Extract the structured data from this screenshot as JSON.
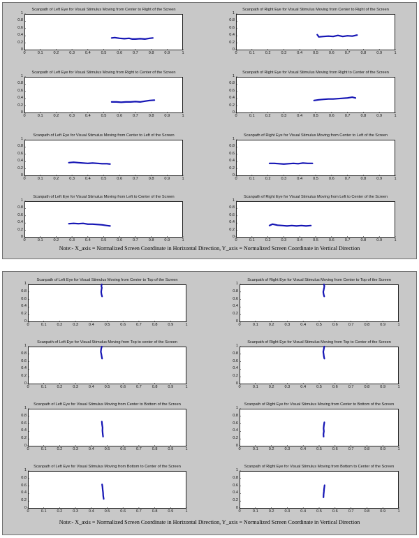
{
  "colors": {
    "trace": "#1414b4",
    "panel_bg": "#c8c8c8"
  },
  "notes": {
    "top": "Note:- X_axis = Normalized Screen Coordinate in Horizontal Direction,  Y_axis = Normalized Screen Coordinate in Vertical Direction",
    "bottom": "Note:- X_axis = Normalized Screen Coordinate in Horizontal Direction, Y_axis = Normalized Screen Coordinate in Vertical Direction"
  },
  "chart_data": [
    {
      "type": "line",
      "title": "Scanpath of Left Eye for Visual Stimulus Moving from Center to Right of the Screen",
      "xlim": [
        0,
        1
      ],
      "ylim": [
        0,
        1
      ],
      "xticks": [
        "0",
        "0.1",
        "0.2",
        "0.3",
        "0.4",
        "0.5",
        "0.6",
        "0.7",
        "0.8",
        "0.9",
        "1"
      ],
      "yticks": [
        "0",
        "0.2",
        "0.4",
        "0.6",
        "0.8",
        "1"
      ],
      "series": [
        {
          "x": [
            0.55,
            0.57,
            0.6,
            0.63,
            0.66,
            0.68,
            0.7,
            0.73,
            0.76,
            0.79,
            0.81
          ],
          "y": [
            0.34,
            0.35,
            0.33,
            0.32,
            0.33,
            0.31,
            0.31,
            0.32,
            0.31,
            0.33,
            0.34
          ]
        }
      ]
    },
    {
      "type": "line",
      "title": "Scanpath of Right Eye for Visual Stimulus Moving from Center to Right of the Screen",
      "xlim": [
        0,
        1
      ],
      "ylim": [
        0,
        1
      ],
      "xticks": [
        "0",
        "0.1",
        "0.2",
        "0.3",
        "0.4",
        "0.5",
        "0.6",
        "0.7",
        "0.8",
        "0.9",
        "1"
      ],
      "yticks": [
        "0",
        "0.2",
        "0.4",
        "0.6",
        "0.8",
        "1"
      ],
      "series": [
        {
          "x": [
            0.51,
            0.52,
            0.55,
            0.58,
            0.61,
            0.64,
            0.67,
            0.7,
            0.73,
            0.76
          ],
          "y": [
            0.43,
            0.37,
            0.38,
            0.39,
            0.38,
            0.41,
            0.38,
            0.4,
            0.39,
            0.42
          ]
        }
      ]
    },
    {
      "type": "line",
      "title": "Scanpath of Left Eye for Visual Stimulus Moving from Right to Center of the Screen",
      "xlim": [
        0,
        1
      ],
      "ylim": [
        0,
        1
      ],
      "xticks": [
        "0",
        "0.1",
        "0.2",
        "0.3",
        "0.4",
        "0.5",
        "0.6",
        "0.7",
        "0.8",
        "0.9",
        "1"
      ],
      "yticks": [
        "0",
        "0.2",
        "0.4",
        "0.6",
        "0.8",
        "1"
      ],
      "series": [
        {
          "x": [
            0.55,
            0.58,
            0.61,
            0.64,
            0.67,
            0.7,
            0.73,
            0.76,
            0.79,
            0.82
          ],
          "y": [
            0.31,
            0.31,
            0.3,
            0.31,
            0.31,
            0.32,
            0.31,
            0.33,
            0.35,
            0.36
          ]
        }
      ]
    },
    {
      "type": "line",
      "title": "Scanpath of Right Eye for Visual Stimulus Moving from Right to Center of the Screen",
      "xlim": [
        0,
        1
      ],
      "ylim": [
        0,
        1
      ],
      "xticks": [
        "0",
        "0.1",
        "0.2",
        "0.3",
        "0.4",
        "0.5",
        "0.6",
        "0.7",
        "0.8",
        "0.9",
        "1"
      ],
      "yticks": [
        "0",
        "0.2",
        "0.4",
        "0.6",
        "0.8",
        "1"
      ],
      "series": [
        {
          "x": [
            0.49,
            0.52,
            0.55,
            0.58,
            0.61,
            0.64,
            0.67,
            0.7,
            0.73,
            0.75
          ],
          "y": [
            0.35,
            0.37,
            0.38,
            0.39,
            0.39,
            0.4,
            0.41,
            0.42,
            0.44,
            0.42
          ]
        }
      ]
    },
    {
      "type": "line",
      "title": "Scanpath of Left Eye for Visual Stimulus Moving from Center to Left of the Screen",
      "xlim": [
        0,
        1
      ],
      "ylim": [
        0,
        1
      ],
      "xticks": [
        "0",
        "0.1",
        "0.2",
        "0.3",
        "0.4",
        "0.5",
        "0.6",
        "0.7",
        "0.8",
        "0.9",
        "1"
      ],
      "yticks": [
        "0",
        "0.2",
        "0.4",
        "0.6",
        "0.8",
        "1"
      ],
      "series": [
        {
          "x": [
            0.28,
            0.31,
            0.34,
            0.37,
            0.4,
            0.43,
            0.46,
            0.49,
            0.52,
            0.54
          ],
          "y": [
            0.37,
            0.38,
            0.37,
            0.36,
            0.35,
            0.36,
            0.35,
            0.34,
            0.34,
            0.33
          ]
        }
      ]
    },
    {
      "type": "line",
      "title": "Scanpath of Right Eye for Visual Stimulus Moving from Center to Left of the Screen",
      "xlim": [
        0,
        1
      ],
      "ylim": [
        0,
        1
      ],
      "xticks": [
        "0",
        "0.1",
        "0.2",
        "0.3",
        "0.4",
        "0.5",
        "0.6",
        "0.7",
        "0.8",
        "0.9",
        "1"
      ],
      "yticks": [
        "0",
        "0.2",
        "0.4",
        "0.6",
        "0.8",
        "1"
      ],
      "series": [
        {
          "x": [
            0.21,
            0.24,
            0.27,
            0.3,
            0.33,
            0.36,
            0.39,
            0.42,
            0.45,
            0.48
          ],
          "y": [
            0.35,
            0.35,
            0.34,
            0.33,
            0.34,
            0.35,
            0.34,
            0.36,
            0.35,
            0.35
          ]
        }
      ]
    },
    {
      "type": "line",
      "title": "Scanpath of Left Eye for Visual Stimulus Moving from Left to Center of the Screen",
      "xlim": [
        0,
        1
      ],
      "ylim": [
        0,
        1
      ],
      "xticks": [
        "0",
        "0.1",
        "0.2",
        "0.3",
        "0.4",
        "0.5",
        "0.6",
        "0.7",
        "0.8",
        "0.9",
        "1"
      ],
      "yticks": [
        "0",
        "0.2",
        "0.4",
        "0.6",
        "0.8",
        "1"
      ],
      "series": [
        {
          "x": [
            0.28,
            0.31,
            0.34,
            0.37,
            0.4,
            0.43,
            0.46,
            0.49,
            0.52,
            0.54
          ],
          "y": [
            0.38,
            0.39,
            0.38,
            0.39,
            0.37,
            0.37,
            0.36,
            0.35,
            0.33,
            0.32
          ]
        }
      ]
    },
    {
      "type": "line",
      "title": "Scanpath of Right Eye for Visual Stimulus Moving from Left to Center of the Screen",
      "xlim": [
        0,
        1
      ],
      "ylim": [
        0,
        1
      ],
      "xticks": [
        "0",
        "0.1",
        "0.2",
        "0.3",
        "0.4",
        "0.5",
        "0.6",
        "0.7",
        "0.8",
        "0.9",
        "1"
      ],
      "yticks": [
        "0",
        "0.2",
        "0.4",
        "0.6",
        "0.8",
        "1"
      ],
      "series": [
        {
          "x": [
            0.21,
            0.23,
            0.26,
            0.29,
            0.32,
            0.35,
            0.38,
            0.41,
            0.44,
            0.47
          ],
          "y": [
            0.33,
            0.37,
            0.34,
            0.33,
            0.32,
            0.33,
            0.32,
            0.33,
            0.32,
            0.33
          ]
        }
      ]
    },
    {
      "type": "line",
      "title": "Scanpath of Left Eye for Visual Stimulus Moving from Center to Top of the Screen",
      "xlim": [
        0,
        1
      ],
      "ylim": [
        0,
        1
      ],
      "xticks": [
        "0",
        "0.1",
        "0.2",
        "0.3",
        "0.4",
        "0.5",
        "0.6",
        "0.7",
        "0.8",
        "0.9",
        "1"
      ],
      "yticks": [
        "0",
        "0.2",
        "0.4",
        "0.6",
        "0.8",
        "1"
      ],
      "series": [
        {
          "x": [
            0.468,
            0.464,
            0.462,
            0.464,
            0.466,
            0.463,
            0.466
          ],
          "y": [
            0.68,
            0.74,
            0.8,
            0.86,
            0.91,
            0.96,
            1.0
          ]
        }
      ]
    },
    {
      "type": "line",
      "title": "Scanpath of Right Eye for Visual Stimulus Moving from Center to Top of the Screen",
      "xlim": [
        0,
        1
      ],
      "ylim": [
        0,
        1
      ],
      "xticks": [
        "0",
        "0.1",
        "0.2",
        "0.3",
        "0.4",
        "0.5",
        "0.6",
        "0.7",
        "0.8",
        "0.9",
        "1"
      ],
      "yticks": [
        "0",
        "0.2",
        "0.4",
        "0.6",
        "0.8",
        "1"
      ],
      "series": [
        {
          "x": [
            0.532,
            0.528,
            0.526,
            0.529,
            0.531,
            0.533,
            0.53
          ],
          "y": [
            0.68,
            0.74,
            0.8,
            0.86,
            0.91,
            0.96,
            1.0
          ]
        }
      ]
    },
    {
      "type": "line",
      "title": "Scanpath of Left Eye for Visual Stimulus Moving from Top to center of the Screen",
      "xlim": [
        0,
        1
      ],
      "ylim": [
        0,
        1
      ],
      "xticks": [
        "0",
        "0.1",
        "0.2",
        "0.3",
        "0.4",
        "0.5",
        "0.6",
        "0.7",
        "0.8",
        "0.9",
        "1"
      ],
      "yticks": [
        "0",
        "0.2",
        "0.4",
        "0.6",
        "0.8",
        "1"
      ],
      "series": [
        {
          "x": [
            0.466,
            0.462,
            0.46,
            0.463,
            0.465,
            0.468
          ],
          "y": [
            1.0,
            0.94,
            0.86,
            0.8,
            0.74,
            0.68
          ]
        }
      ]
    },
    {
      "type": "line",
      "title": "Scanpath of Right Eye for Visual Stimulus Moving from Top to Center of the Screen",
      "xlim": [
        0,
        1
      ],
      "ylim": [
        0,
        1
      ],
      "xticks": [
        "0",
        "0.1",
        "0.2",
        "0.3",
        "0.4",
        "0.5",
        "0.6",
        "0.7",
        "0.8",
        "0.9",
        "1"
      ],
      "yticks": [
        "0",
        "0.2",
        "0.4",
        "0.6",
        "0.8",
        "1"
      ],
      "series": [
        {
          "x": [
            0.532,
            0.53,
            0.526,
            0.528,
            0.53,
            0.533
          ],
          "y": [
            1.0,
            0.94,
            0.86,
            0.8,
            0.74,
            0.68
          ]
        }
      ]
    },
    {
      "type": "line",
      "title": "Scanpath of Left Eye for Visual Stimulus Moving from Center to Bottom of the Screen",
      "xlim": [
        0,
        1
      ],
      "ylim": [
        0,
        1
      ],
      "xticks": [
        "0",
        "0.1",
        "0.2",
        "0.3",
        "0.4",
        "0.5",
        "0.6",
        "0.7",
        "0.8",
        "0.9",
        "1"
      ],
      "yticks": [
        "0",
        "0.2",
        "0.4",
        "0.6",
        "0.8",
        "1"
      ],
      "series": [
        {
          "x": [
            0.466,
            0.468,
            0.471,
            0.47,
            0.472,
            0.474
          ],
          "y": [
            0.66,
            0.58,
            0.5,
            0.42,
            0.34,
            0.26
          ]
        }
      ]
    },
    {
      "type": "line",
      "title": "Scanpath of Right Eye for Visual Stimulus Moving from Center to Bottom of the Screen",
      "xlim": [
        0,
        1
      ],
      "ylim": [
        0,
        1
      ],
      "xticks": [
        "0",
        "0.1",
        "0.2",
        "0.3",
        "0.4",
        "0.5",
        "0.6",
        "0.7",
        "0.8",
        "0.9",
        "1"
      ],
      "yticks": [
        "0",
        "0.2",
        "0.4",
        "0.6",
        "0.8",
        "1"
      ],
      "series": [
        {
          "x": [
            0.533,
            0.53,
            0.528,
            0.53,
            0.527,
            0.528
          ],
          "y": [
            0.64,
            0.56,
            0.48,
            0.4,
            0.33,
            0.26
          ]
        }
      ]
    },
    {
      "type": "line",
      "title": "Scanpath of Left Eye for Visual Stimulus Moving from Bottom to Center of the Screen",
      "xlim": [
        0,
        1
      ],
      "ylim": [
        0,
        1
      ],
      "xticks": [
        "0",
        "0.1",
        "0.2",
        "0.3",
        "0.4",
        "0.5",
        "0.6",
        "0.7",
        "0.8",
        "0.9",
        "1"
      ],
      "yticks": [
        "0",
        "0.2",
        "0.4",
        "0.6",
        "0.8",
        "1"
      ],
      "series": [
        {
          "x": [
            0.478,
            0.475,
            0.474,
            0.472,
            0.47,
            0.468
          ],
          "y": [
            0.26,
            0.34,
            0.42,
            0.5,
            0.58,
            0.64
          ]
        }
      ]
    },
    {
      "type": "line",
      "title": "Scanpath of Right Eye for Visual Stimulus Moving from Bottom to Center of the Screen",
      "xlim": [
        0,
        1
      ],
      "ylim": [
        0,
        1
      ],
      "xticks": [
        "0",
        "0.1",
        "0.2",
        "0.3",
        "0.4",
        "0.5",
        "0.6",
        "0.7",
        "0.8",
        "0.9",
        "1"
      ],
      "yticks": [
        "0",
        "0.2",
        "0.4",
        "0.6",
        "0.8",
        "1"
      ],
      "series": [
        {
          "x": [
            0.527,
            0.528,
            0.53,
            0.531,
            0.533,
            0.534
          ],
          "y": [
            0.3,
            0.38,
            0.45,
            0.52,
            0.58,
            0.62
          ]
        }
      ]
    }
  ]
}
